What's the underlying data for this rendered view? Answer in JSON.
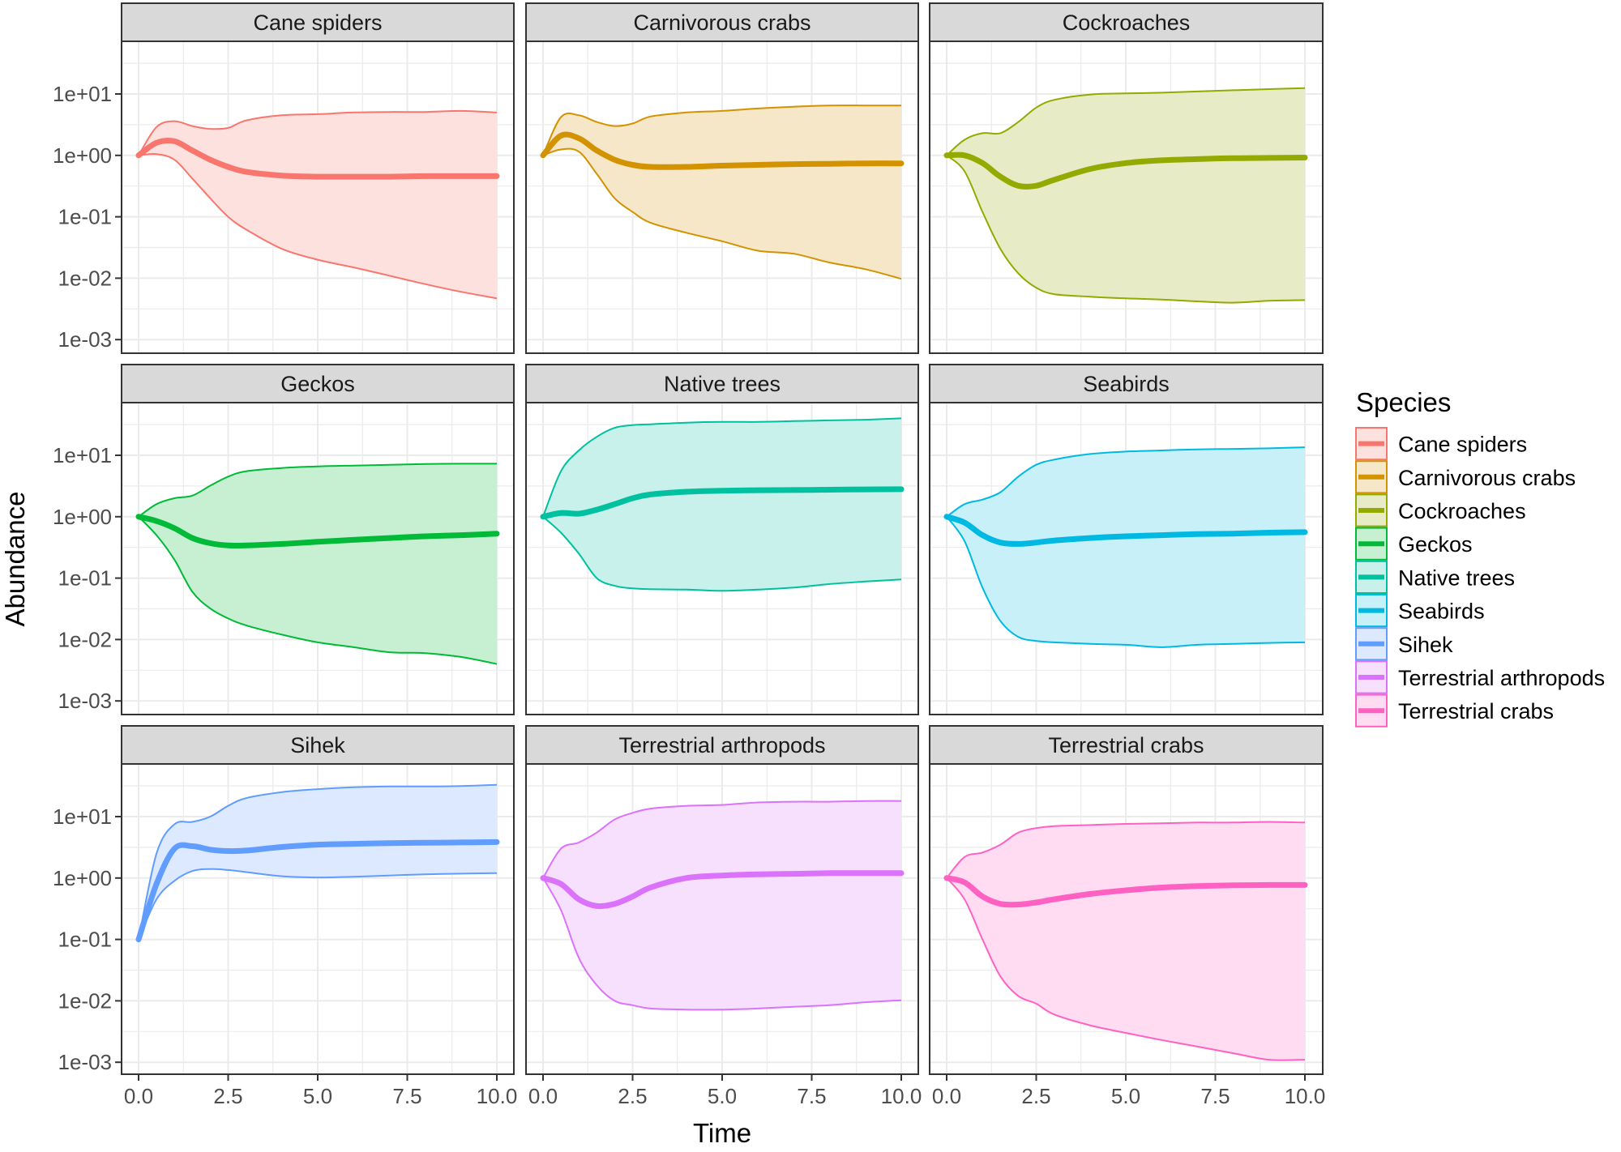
{
  "chart_data": {
    "type": "line",
    "layout": "facet-3x3",
    "xlabel": "Time",
    "ylabel": "Abundance",
    "xlim": [
      0,
      10
    ],
    "ylim": [
      0.0006,
      72
    ],
    "yscale": "log10",
    "x_ticks": [
      "0.0",
      "2.5",
      "5.0",
      "7.5",
      "10.0"
    ],
    "x_tick_values": [
      0,
      2.5,
      5,
      7.5,
      10
    ],
    "y_ticks": [
      "1e+01",
      "1e+00",
      "1e-01",
      "1e-02",
      "1e-03"
    ],
    "y_tick_values": [
      10,
      1,
      0.1,
      0.01,
      0.001
    ],
    "grid": true,
    "legend": {
      "title": "Species",
      "position": "right",
      "entries": [
        "Cane spiders",
        "Carnivorous crabs",
        "Cockroaches",
        "Geckos",
        "Native trees",
        "Seabirds",
        "Sihek",
        "Terrestrial arthropods",
        "Terrestrial crabs"
      ]
    },
    "x": [
      0,
      0.5,
      1,
      1.5,
      2,
      2.5,
      3,
      4,
      5,
      6,
      7,
      8,
      9,
      10
    ],
    "series": [
      {
        "name": "Cane spiders",
        "color": "#F8766D",
        "median": [
          1,
          1.6,
          1.7,
          1.2,
          0.85,
          0.65,
          0.54,
          0.47,
          0.45,
          0.45,
          0.45,
          0.46,
          0.46,
          0.46
        ],
        "lower": [
          1,
          1.05,
          0.85,
          0.42,
          0.2,
          0.1,
          0.062,
          0.03,
          0.02,
          0.015,
          0.011,
          0.008,
          0.006,
          0.0047
        ],
        "upper": [
          1,
          2.9,
          3.6,
          3.0,
          2.7,
          2.8,
          3.7,
          4.5,
          4.7,
          5.0,
          5.1,
          5.1,
          5.3,
          5.0
        ]
      },
      {
        "name": "Carnivorous crabs",
        "color": "#D39200",
        "median": [
          1,
          2.1,
          1.9,
          1.2,
          0.85,
          0.7,
          0.65,
          0.65,
          0.68,
          0.7,
          0.72,
          0.73,
          0.74,
          0.74
        ],
        "lower": [
          1,
          1.25,
          1.15,
          0.5,
          0.2,
          0.12,
          0.08,
          0.055,
          0.04,
          0.028,
          0.025,
          0.018,
          0.014,
          0.0098
        ],
        "upper": [
          1,
          4.2,
          4.5,
          3.5,
          3.0,
          3.3,
          4.3,
          5.0,
          5.3,
          5.8,
          6.2,
          6.5,
          6.5,
          6.5
        ]
      },
      {
        "name": "Cockroaches",
        "color": "#93AA00",
        "median": [
          1,
          1.0,
          0.75,
          0.45,
          0.32,
          0.32,
          0.4,
          0.6,
          0.75,
          0.83,
          0.87,
          0.9,
          0.91,
          0.92
        ],
        "lower": [
          1,
          0.55,
          0.12,
          0.03,
          0.012,
          0.007,
          0.0055,
          0.005,
          0.0047,
          0.0045,
          0.0042,
          0.004,
          0.0043,
          0.0044
        ],
        "upper": [
          1,
          1.8,
          2.3,
          2.3,
          3.5,
          6.0,
          8.0,
          9.8,
          10.2,
          10.5,
          11.0,
          11.5,
          12.0,
          12.5
        ]
      },
      {
        "name": "Geckos",
        "color": "#00BA38",
        "median": [
          1,
          0.85,
          0.65,
          0.45,
          0.37,
          0.34,
          0.34,
          0.36,
          0.39,
          0.42,
          0.45,
          0.48,
          0.5,
          0.53
        ],
        "lower": [
          1,
          0.5,
          0.2,
          0.06,
          0.032,
          0.022,
          0.017,
          0.012,
          0.009,
          0.0075,
          0.0062,
          0.006,
          0.0052,
          0.004
        ],
        "upper": [
          1,
          1.6,
          2.0,
          2.2,
          3.2,
          4.5,
          5.5,
          6.2,
          6.6,
          6.8,
          7.0,
          7.2,
          7.3,
          7.3
        ]
      },
      {
        "name": "Native trees",
        "color": "#00C19F",
        "median": [
          1,
          1.15,
          1.12,
          1.3,
          1.6,
          2.0,
          2.3,
          2.55,
          2.65,
          2.7,
          2.72,
          2.75,
          2.78,
          2.8
        ],
        "lower": [
          1,
          0.55,
          0.25,
          0.1,
          0.075,
          0.068,
          0.066,
          0.065,
          0.062,
          0.065,
          0.07,
          0.08,
          0.088,
          0.095
        ],
        "upper": [
          1,
          5.5,
          12.0,
          20.0,
          28.0,
          31.0,
          32.0,
          34.0,
          35.0,
          35.0,
          36.0,
          37.0,
          38.0,
          40.0
        ]
      },
      {
        "name": "Seabirds",
        "color": "#00B9E3",
        "median": [
          1,
          0.8,
          0.5,
          0.38,
          0.36,
          0.38,
          0.41,
          0.45,
          0.48,
          0.5,
          0.52,
          0.53,
          0.55,
          0.56
        ],
        "lower": [
          1,
          0.4,
          0.07,
          0.02,
          0.011,
          0.0095,
          0.009,
          0.0085,
          0.0082,
          0.0075,
          0.0082,
          0.0085,
          0.0088,
          0.009
        ],
        "upper": [
          1,
          1.6,
          1.9,
          2.5,
          4.5,
          7.0,
          8.5,
          10.5,
          11.5,
          12.0,
          12.5,
          12.7,
          13.0,
          13.5
        ]
      },
      {
        "name": "Sihek",
        "color": "#619CFF",
        "median": [
          0.1,
          0.8,
          3.0,
          3.3,
          2.9,
          2.75,
          2.8,
          3.2,
          3.5,
          3.6,
          3.7,
          3.75,
          3.8,
          3.85
        ],
        "lower": [
          0.1,
          0.45,
          0.9,
          1.3,
          1.4,
          1.35,
          1.25,
          1.07,
          1.02,
          1.05,
          1.1,
          1.15,
          1.18,
          1.2
        ],
        "upper": [
          0.1,
          2.5,
          7.5,
          8.2,
          10.0,
          15.0,
          20.0,
          25.0,
          28.0,
          30.0,
          31.0,
          31.0,
          31.5,
          33.0
        ]
      },
      {
        "name": "Terrestrial arthropods",
        "color": "#DB72FB",
        "median": [
          1,
          0.8,
          0.45,
          0.35,
          0.38,
          0.5,
          0.7,
          1.0,
          1.1,
          1.15,
          1.17,
          1.2,
          1.2,
          1.2
        ],
        "lower": [
          1,
          0.3,
          0.05,
          0.018,
          0.01,
          0.0085,
          0.0075,
          0.0072,
          0.0072,
          0.0075,
          0.008,
          0.0085,
          0.0095,
          0.0102
        ],
        "upper": [
          1,
          3.0,
          3.8,
          5.5,
          9.0,
          11.5,
          13.5,
          15.0,
          15.5,
          17.0,
          17.5,
          17.5,
          18.0,
          18.0
        ]
      },
      {
        "name": "Terrestrial crabs",
        "color": "#FF61C3",
        "median": [
          1,
          0.85,
          0.5,
          0.38,
          0.37,
          0.4,
          0.45,
          0.55,
          0.63,
          0.7,
          0.74,
          0.76,
          0.77,
          0.77
        ],
        "lower": [
          1,
          0.45,
          0.1,
          0.025,
          0.012,
          0.009,
          0.006,
          0.004,
          0.003,
          0.0023,
          0.0018,
          0.0014,
          0.0011,
          0.0011
        ],
        "upper": [
          1,
          2.2,
          2.6,
          3.5,
          5.5,
          6.5,
          7.0,
          7.3,
          7.6,
          7.8,
          8.0,
          8.0,
          8.2,
          8.0
        ]
      }
    ]
  }
}
